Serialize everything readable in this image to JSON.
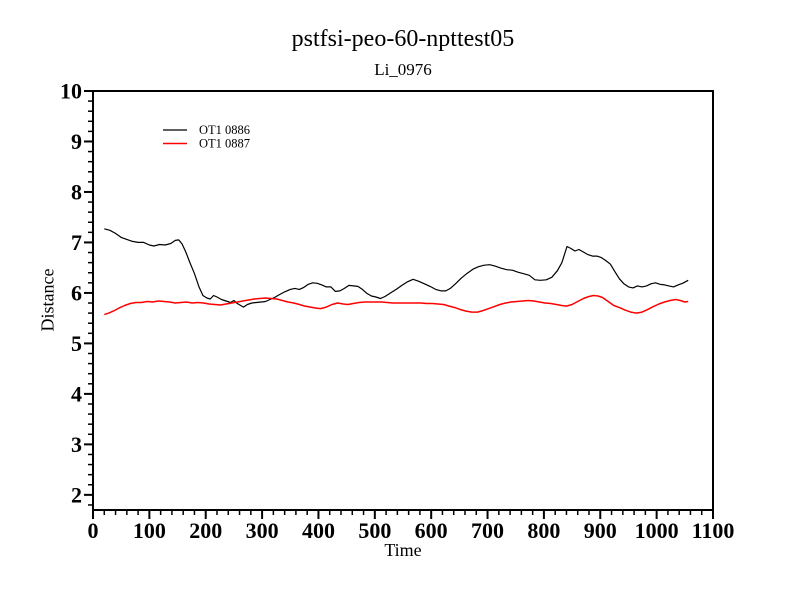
{
  "page": {
    "background": "#ffffff"
  },
  "chart_data": {
    "type": "line",
    "title": "pstfsi-peo-60-npttest05",
    "subtitle": "Li_0976",
    "xlabel": "Time",
    "ylabel": "Distance",
    "xlim": [
      0,
      1100
    ],
    "ylim": [
      1.7,
      10
    ],
    "x_major_ticks": [
      0,
      100,
      200,
      300,
      400,
      500,
      600,
      700,
      800,
      900,
      1000,
      1100
    ],
    "x_minor_step": 20,
    "y_major_ticks": [
      2,
      3,
      4,
      5,
      6,
      7,
      8,
      9,
      10
    ],
    "y_minor_step": 0.2,
    "grid": false,
    "frame_color": "#000000",
    "legend": {
      "position": "upper-left-inside"
    },
    "series": [
      {
        "name": "OT1 0886",
        "color": "#000000",
        "points": [
          [
            20,
            7.27
          ],
          [
            30,
            7.24
          ],
          [
            40,
            7.18
          ],
          [
            50,
            7.1
          ],
          [
            60,
            7.06
          ],
          [
            70,
            7.02
          ],
          [
            80,
            7.0
          ],
          [
            90,
            7.0
          ],
          [
            100,
            6.95
          ],
          [
            108,
            6.93
          ],
          [
            118,
            6.96
          ],
          [
            128,
            6.95
          ],
          [
            138,
            6.98
          ],
          [
            146,
            7.04
          ],
          [
            152,
            7.05
          ],
          [
            158,
            6.97
          ],
          [
            165,
            6.8
          ],
          [
            172,
            6.6
          ],
          [
            180,
            6.38
          ],
          [
            188,
            6.12
          ],
          [
            195,
            5.95
          ],
          [
            202,
            5.9
          ],
          [
            208,
            5.88
          ],
          [
            214,
            5.95
          ],
          [
            220,
            5.92
          ],
          [
            228,
            5.87
          ],
          [
            236,
            5.84
          ],
          [
            244,
            5.81
          ],
          [
            250,
            5.85
          ],
          [
            256,
            5.79
          ],
          [
            262,
            5.75
          ],
          [
            267,
            5.72
          ],
          [
            274,
            5.77
          ],
          [
            282,
            5.8
          ],
          [
            290,
            5.81
          ],
          [
            298,
            5.82
          ],
          [
            306,
            5.83
          ],
          [
            314,
            5.87
          ],
          [
            322,
            5.91
          ],
          [
            330,
            5.96
          ],
          [
            340,
            6.02
          ],
          [
            350,
            6.07
          ],
          [
            358,
            6.09
          ],
          [
            366,
            6.07
          ],
          [
            374,
            6.11
          ],
          [
            382,
            6.17
          ],
          [
            390,
            6.2
          ],
          [
            398,
            6.19
          ],
          [
            406,
            6.16
          ],
          [
            414,
            6.12
          ],
          [
            422,
            6.12
          ],
          [
            430,
            6.03
          ],
          [
            438,
            6.04
          ],
          [
            446,
            6.09
          ],
          [
            454,
            6.15
          ],
          [
            462,
            6.14
          ],
          [
            470,
            6.13
          ],
          [
            478,
            6.07
          ],
          [
            486,
            5.99
          ],
          [
            494,
            5.94
          ],
          [
            502,
            5.92
          ],
          [
            510,
            5.89
          ],
          [
            518,
            5.93
          ],
          [
            528,
            6.0
          ],
          [
            538,
            6.07
          ],
          [
            548,
            6.15
          ],
          [
            558,
            6.22
          ],
          [
            568,
            6.27
          ],
          [
            578,
            6.23
          ],
          [
            588,
            6.18
          ],
          [
            598,
            6.13
          ],
          [
            608,
            6.07
          ],
          [
            618,
            6.04
          ],
          [
            626,
            6.04
          ],
          [
            634,
            6.09
          ],
          [
            644,
            6.19
          ],
          [
            654,
            6.3
          ],
          [
            664,
            6.39
          ],
          [
            674,
            6.47
          ],
          [
            684,
            6.52
          ],
          [
            694,
            6.55
          ],
          [
            704,
            6.56
          ],
          [
            714,
            6.53
          ],
          [
            724,
            6.49
          ],
          [
            734,
            6.46
          ],
          [
            744,
            6.45
          ],
          [
            754,
            6.41
          ],
          [
            764,
            6.38
          ],
          [
            774,
            6.35
          ],
          [
            784,
            6.26
          ],
          [
            794,
            6.25
          ],
          [
            804,
            6.26
          ],
          [
            814,
            6.31
          ],
          [
            824,
            6.44
          ],
          [
            832,
            6.6
          ],
          [
            841,
            6.92
          ],
          [
            848,
            6.88
          ],
          [
            855,
            6.83
          ],
          [
            862,
            6.86
          ],
          [
            870,
            6.81
          ],
          [
            878,
            6.76
          ],
          [
            886,
            6.73
          ],
          [
            894,
            6.73
          ],
          [
            902,
            6.7
          ],
          [
            910,
            6.64
          ],
          [
            918,
            6.57
          ],
          [
            926,
            6.42
          ],
          [
            934,
            6.28
          ],
          [
            942,
            6.18
          ],
          [
            950,
            6.12
          ],
          [
            958,
            6.1
          ],
          [
            966,
            6.14
          ],
          [
            974,
            6.12
          ],
          [
            982,
            6.14
          ],
          [
            990,
            6.18
          ],
          [
            998,
            6.2
          ],
          [
            1006,
            6.17
          ],
          [
            1014,
            6.16
          ],
          [
            1022,
            6.14
          ],
          [
            1030,
            6.12
          ],
          [
            1038,
            6.16
          ],
          [
            1046,
            6.19
          ],
          [
            1056,
            6.25
          ]
        ]
      },
      {
        "name": "OT1 0887",
        "color": "#ff0000",
        "points": [
          [
            20,
            5.57
          ],
          [
            28,
            5.6
          ],
          [
            36,
            5.64
          ],
          [
            46,
            5.7
          ],
          [
            56,
            5.75
          ],
          [
            66,
            5.79
          ],
          [
            76,
            5.81
          ],
          [
            86,
            5.81
          ],
          [
            96,
            5.83
          ],
          [
            106,
            5.82
          ],
          [
            116,
            5.84
          ],
          [
            126,
            5.83
          ],
          [
            136,
            5.82
          ],
          [
            146,
            5.8
          ],
          [
            156,
            5.81
          ],
          [
            166,
            5.82
          ],
          [
            176,
            5.8
          ],
          [
            186,
            5.81
          ],
          [
            196,
            5.8
          ],
          [
            206,
            5.78
          ],
          [
            216,
            5.77
          ],
          [
            226,
            5.76
          ],
          [
            236,
            5.78
          ],
          [
            246,
            5.8
          ],
          [
            256,
            5.82
          ],
          [
            266,
            5.84
          ],
          [
            276,
            5.86
          ],
          [
            286,
            5.88
          ],
          [
            296,
            5.89
          ],
          [
            306,
            5.9
          ],
          [
            316,
            5.89
          ],
          [
            326,
            5.88
          ],
          [
            336,
            5.85
          ],
          [
            346,
            5.82
          ],
          [
            356,
            5.8
          ],
          [
            366,
            5.77
          ],
          [
            376,
            5.74
          ],
          [
            386,
            5.72
          ],
          [
            396,
            5.7
          ],
          [
            404,
            5.69
          ],
          [
            414,
            5.72
          ],
          [
            424,
            5.77
          ],
          [
            434,
            5.8
          ],
          [
            444,
            5.78
          ],
          [
            452,
            5.77
          ],
          [
            462,
            5.79
          ],
          [
            472,
            5.81
          ],
          [
            482,
            5.82
          ],
          [
            492,
            5.82
          ],
          [
            502,
            5.82
          ],
          [
            512,
            5.82
          ],
          [
            522,
            5.81
          ],
          [
            532,
            5.8
          ],
          [
            542,
            5.8
          ],
          [
            552,
            5.8
          ],
          [
            562,
            5.8
          ],
          [
            572,
            5.8
          ],
          [
            582,
            5.8
          ],
          [
            592,
            5.79
          ],
          [
            602,
            5.79
          ],
          [
            612,
            5.78
          ],
          [
            622,
            5.77
          ],
          [
            632,
            5.74
          ],
          [
            642,
            5.71
          ],
          [
            652,
            5.67
          ],
          [
            662,
            5.64
          ],
          [
            672,
            5.62
          ],
          [
            682,
            5.62
          ],
          [
            692,
            5.65
          ],
          [
            702,
            5.69
          ],
          [
            712,
            5.73
          ],
          [
            722,
            5.77
          ],
          [
            732,
            5.8
          ],
          [
            742,
            5.82
          ],
          [
            752,
            5.83
          ],
          [
            762,
            5.84
          ],
          [
            772,
            5.85
          ],
          [
            782,
            5.84
          ],
          [
            792,
            5.82
          ],
          [
            802,
            5.8
          ],
          [
            812,
            5.79
          ],
          [
            822,
            5.77
          ],
          [
            832,
            5.75
          ],
          [
            840,
            5.74
          ],
          [
            850,
            5.77
          ],
          [
            860,
            5.83
          ],
          [
            870,
            5.89
          ],
          [
            880,
            5.93
          ],
          [
            888,
            5.95
          ],
          [
            896,
            5.94
          ],
          [
            904,
            5.91
          ],
          [
            914,
            5.83
          ],
          [
            924,
            5.75
          ],
          [
            934,
            5.71
          ],
          [
            944,
            5.66
          ],
          [
            954,
            5.62
          ],
          [
            964,
            5.6
          ],
          [
            974,
            5.62
          ],
          [
            984,
            5.67
          ],
          [
            994,
            5.73
          ],
          [
            1004,
            5.78
          ],
          [
            1014,
            5.82
          ],
          [
            1024,
            5.85
          ],
          [
            1034,
            5.87
          ],
          [
            1042,
            5.85
          ],
          [
            1050,
            5.82
          ],
          [
            1056,
            5.83
          ]
        ]
      }
    ]
  }
}
